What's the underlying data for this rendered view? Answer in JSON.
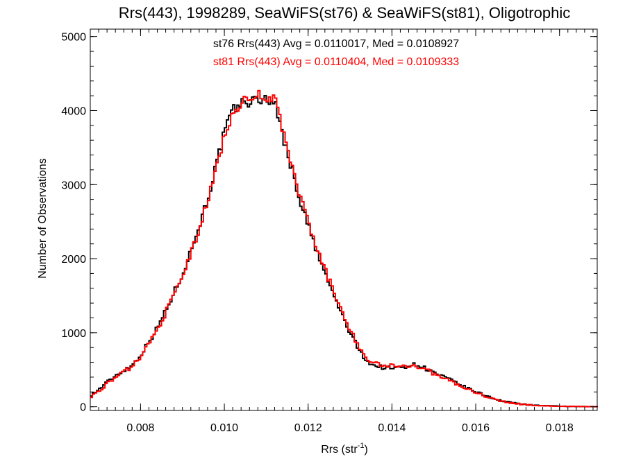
{
  "chart_data": {
    "type": "line",
    "title": "Rrs(443), 1998289, SeaWiFS(st76) & SeaWiFS(st81), Oligotrophic",
    "xlabel_main": "Rrs (str",
    "xlabel_sup": "-1",
    "xlabel_close": ")",
    "ylabel": "Number of Observations",
    "xlim": [
      0.0068,
      0.0189
    ],
    "ylim": [
      -50,
      5100
    ],
    "x_ticks": [
      0.008,
      0.01,
      0.012,
      0.014,
      0.016,
      0.018
    ],
    "x_tick_labels": [
      "0.008",
      "0.010",
      "0.012",
      "0.014",
      "0.016",
      "0.018"
    ],
    "y_ticks": [
      0,
      1000,
      2000,
      3000,
      4000,
      5000
    ],
    "y_tick_labels": [
      "0",
      "1000",
      "2000",
      "3000",
      "4000",
      "5000"
    ],
    "annotations": [
      {
        "text": "st76 Rrs(443) Avg = 0.0110017, Med = 0.0108927",
        "color": "#000000"
      },
      {
        "text": "st81 Rrs(443) Avg = 0.0110404, Med = 0.0109333",
        "color": "#ff0000"
      }
    ],
    "grid": false,
    "bin_width": 5e-05,
    "series": [
      {
        "color": "#000000",
        "x": [
          0.0068,
          0.007,
          0.0072,
          0.0074,
          0.0076,
          0.0078,
          0.008,
          0.0082,
          0.0084,
          0.0086,
          0.0088,
          0.009,
          0.0092,
          0.0094,
          0.0096,
          0.0098,
          0.01,
          0.0102,
          0.0104,
          0.0106,
          0.0108,
          0.0109,
          0.011,
          0.0111,
          0.0112,
          0.0113,
          0.0114,
          0.0116,
          0.0118,
          0.012,
          0.0122,
          0.0124,
          0.0126,
          0.0128,
          0.013,
          0.0132,
          0.0134,
          0.0136,
          0.0138,
          0.014,
          0.0142,
          0.0144,
          0.0146,
          0.0148,
          0.015,
          0.0152,
          0.0154,
          0.0156,
          0.0158,
          0.016,
          0.0162,
          0.0164,
          0.0166,
          0.0168,
          0.017,
          0.0172,
          0.0174,
          0.0176,
          0.0178,
          0.018,
          0.0182,
          0.0184,
          0.0186,
          0.0188
        ],
        "y": [
          150,
          230,
          330,
          420,
          490,
          560,
          700,
          880,
          1060,
          1300,
          1540,
          1800,
          2100,
          2450,
          2800,
          3250,
          3700,
          4000,
          4100,
          4120,
          4140,
          4150,
          4160,
          4150,
          4100,
          3900,
          3650,
          3230,
          2800,
          2450,
          2100,
          1800,
          1520,
          1250,
          1000,
          780,
          620,
          550,
          530,
          520,
          530,
          560,
          570,
          520,
          460,
          410,
          360,
          300,
          250,
          200,
          160,
          120,
          80,
          60,
          45,
          30,
          20,
          15,
          10,
          8,
          5,
          3,
          2,
          1
        ]
      },
      {
        "color": "#ff0000",
        "x": [
          0.0068,
          0.007,
          0.0072,
          0.0074,
          0.0076,
          0.0078,
          0.008,
          0.0082,
          0.0084,
          0.0086,
          0.0088,
          0.009,
          0.0092,
          0.0094,
          0.0096,
          0.0098,
          0.01,
          0.0102,
          0.0104,
          0.0106,
          0.0108,
          0.0109,
          0.011,
          0.0111,
          0.0112,
          0.0113,
          0.0114,
          0.0116,
          0.0118,
          0.012,
          0.0122,
          0.0124,
          0.0126,
          0.0128,
          0.013,
          0.0132,
          0.0134,
          0.0136,
          0.0138,
          0.014,
          0.0142,
          0.0144,
          0.0146,
          0.0148,
          0.015,
          0.0152,
          0.0154,
          0.0156,
          0.0158,
          0.016,
          0.0162,
          0.0164,
          0.0166,
          0.0168,
          0.017,
          0.0172,
          0.0174,
          0.0176,
          0.0178,
          0.018,
          0.0182,
          0.0184,
          0.0186,
          0.0188
        ],
        "y": [
          130,
          210,
          310,
          400,
          470,
          540,
          680,
          860,
          1040,
          1270,
          1510,
          1760,
          2060,
          2400,
          2760,
          3200,
          3660,
          3980,
          4100,
          4150,
          4180,
          4250,
          4180,
          4170,
          4150,
          3960,
          3700,
          3280,
          2850,
          2500,
          2150,
          1850,
          1570,
          1300,
          1050,
          820,
          650,
          580,
          560,
          550,
          560,
          560,
          540,
          500,
          450,
          400,
          350,
          290,
          240,
          190,
          150,
          110,
          75,
          55,
          40,
          28,
          18,
          13,
          9,
          7,
          4,
          3,
          2,
          1
        ]
      }
    ]
  }
}
